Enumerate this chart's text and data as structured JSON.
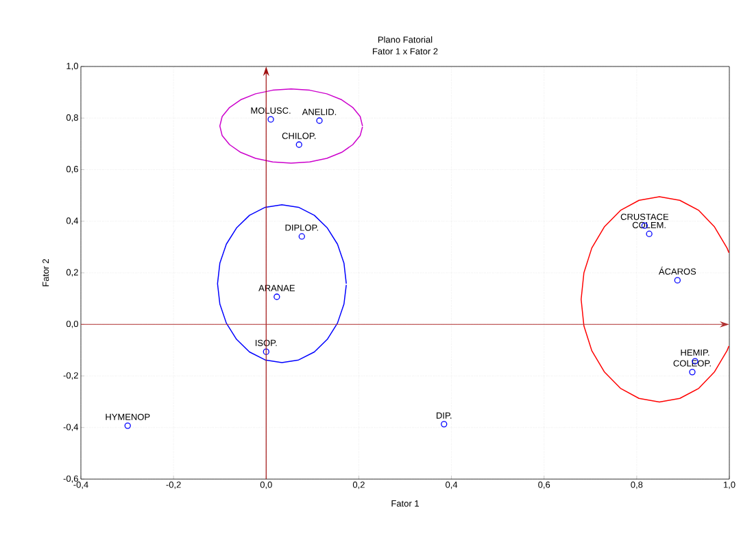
{
  "chart_data": {
    "type": "scatter",
    "title": "Plano Fatorial",
    "subtitle": "Fator 1 x Fator 2",
    "xlabel": "Fator 1",
    "ylabel": "Fator 2",
    "xlim": [
      -0.4,
      1.0
    ],
    "ylim": [
      -0.6,
      1.0
    ],
    "xticks": [
      {
        "value": -0.4,
        "label": "-0,4"
      },
      {
        "value": -0.2,
        "label": "-0,2"
      },
      {
        "value": 0.0,
        "label": "0,0"
      },
      {
        "value": 0.2,
        "label": "0,2"
      },
      {
        "value": 0.4,
        "label": "0,4"
      },
      {
        "value": 0.6,
        "label": "0,6"
      },
      {
        "value": 0.8,
        "label": "0,8"
      },
      {
        "value": 1.0,
        "label": "1,0"
      }
    ],
    "yticks": [
      {
        "value": -0.6,
        "label": "-0,6"
      },
      {
        "value": -0.4,
        "label": "-0,4"
      },
      {
        "value": -0.2,
        "label": "-0,2"
      },
      {
        "value": 0.0,
        "label": "0,0"
      },
      {
        "value": 0.2,
        "label": "0,2"
      },
      {
        "value": 0.4,
        "label": "0,4"
      },
      {
        "value": 0.6,
        "label": "0,6"
      },
      {
        "value": 0.8,
        "label": "0,8"
      },
      {
        "value": 1.0,
        "label": "1,0"
      }
    ],
    "grid": true,
    "marker": "circle",
    "series": [
      {
        "color": "#0000ff",
        "x": [
          0.01,
          0.115,
          0.071,
          0.077,
          0.023,
          0.0,
          -0.299,
          0.384,
          0.817,
          0.827,
          0.888,
          0.926,
          0.92
        ],
        "values": [
          0.795,
          0.79,
          0.697,
          0.341,
          0.107,
          -0.106,
          -0.393,
          -0.387,
          0.383,
          0.351,
          0.171,
          -0.143,
          -0.185
        ]
      },
      {
        "type": "line",
        "marker": "none",
        "color": "#cc00cc",
        "x": [
          0.208,
          0.203,
          0.187,
          0.163,
          0.131,
          0.094,
          0.054,
          0.014,
          -0.023,
          -0.055,
          -0.079,
          -0.095,
          -0.1,
          -0.095,
          -0.079,
          -0.055,
          -0.023,
          0.014,
          0.054,
          0.094,
          0.131,
          0.163,
          0.187,
          0.203,
          0.208
        ],
        "values": [
          0.769,
          0.806,
          0.841,
          0.871,
          0.894,
          0.908,
          0.913,
          0.908,
          0.894,
          0.871,
          0.841,
          0.806,
          0.769,
          0.732,
          0.697,
          0.667,
          0.644,
          0.63,
          0.625,
          0.63,
          0.644,
          0.667,
          0.697,
          0.732,
          0.766
        ]
      },
      {
        "type": "line",
        "marker": "none",
        "color": "#0000ff",
        "x": [
          0.173,
          0.168,
          0.154,
          0.132,
          0.104,
          0.07,
          0.034,
          -0.002,
          -0.036,
          -0.064,
          -0.086,
          -0.1,
          -0.105,
          -0.1,
          -0.086,
          -0.064,
          -0.036,
          -0.002,
          0.034,
          0.07,
          0.104,
          0.132,
          0.154,
          0.168,
          0.173
        ],
        "values": [
          0.158,
          0.237,
          0.311,
          0.374,
          0.423,
          0.454,
          0.464,
          0.454,
          0.423,
          0.374,
          0.311,
          0.237,
          0.158,
          0.079,
          0.005,
          -0.058,
          -0.107,
          -0.138,
          -0.148,
          -0.138,
          -0.107,
          -0.058,
          0.005,
          0.079,
          0.153
        ]
      },
      {
        "type": "line",
        "marker": "none",
        "color": "#ff0000",
        "x": [
          0.999,
          0.995,
          0.968,
          0.934,
          0.893,
          0.849,
          0.805,
          0.765,
          0.73,
          0.703,
          0.686,
          0.68,
          0.686,
          0.703,
          0.73,
          0.765,
          0.805,
          0.849,
          0.893,
          0.934,
          0.968,
          0.995,
          0.999
        ],
        "values": [
          0.278,
          0.296,
          0.378,
          0.442,
          0.481,
          0.495,
          0.481,
          0.442,
          0.378,
          0.296,
          0.2,
          0.097,
          -0.006,
          -0.102,
          -0.184,
          -0.248,
          -0.287,
          -0.301,
          -0.287,
          -0.248,
          -0.184,
          -0.102,
          -0.084
        ]
      }
    ],
    "ref_lines": [
      {
        "axis": "x",
        "value": 0.0,
        "color": "#a01010"
      },
      {
        "axis": "y",
        "value": 0.0,
        "color": "#b03030"
      }
    ],
    "annotations": [
      {
        "text": "MOLUSC.",
        "x": 0.01,
        "y": 0.795
      },
      {
        "text": "ANELID.",
        "x": 0.115,
        "y": 0.79
      },
      {
        "text": "CHILOP.",
        "x": 0.071,
        "y": 0.697
      },
      {
        "text": "DIPLOP.",
        "x": 0.077,
        "y": 0.341
      },
      {
        "text": "ARANAE",
        "x": 0.023,
        "y": 0.107
      },
      {
        "text": "ISOP.",
        "x": 0.0,
        "y": -0.106
      },
      {
        "text": "HYMENOP",
        "x": -0.299,
        "y": -0.393
      },
      {
        "text": "DIP.",
        "x": 0.384,
        "y": -0.387
      },
      {
        "text": "CRUSTACE",
        "x": 0.817,
        "y": 0.383
      },
      {
        "text": "COLEM.",
        "x": 0.827,
        "y": 0.351
      },
      {
        "text": "ÁCAROS",
        "x": 0.888,
        "y": 0.171
      },
      {
        "text": "HEMIP.",
        "x": 0.926,
        "y": -0.143
      },
      {
        "text": "COLEOP.",
        "x": 0.92,
        "y": -0.185
      }
    ]
  }
}
